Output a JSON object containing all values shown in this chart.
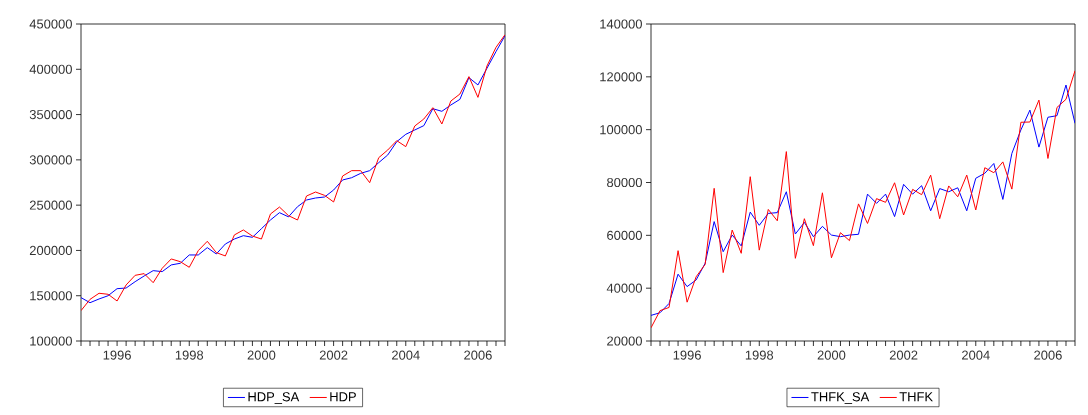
{
  "chart_data": [
    {
      "type": "line",
      "x": [
        1995,
        1995.25,
        1995.5,
        1995.75,
        1996,
        1996.25,
        1996.5,
        1996.75,
        1997,
        1997.25,
        1997.5,
        1997.75,
        1998,
        1998.25,
        1998.5,
        1998.75,
        1999,
        1999.25,
        1999.5,
        1999.75,
        2000,
        2000.25,
        2000.5,
        2000.75,
        2001,
        2001.25,
        2001.5,
        2001.75,
        2002,
        2002.25,
        2002.5,
        2002.75,
        2003,
        2003.25,
        2003.5,
        2003.75,
        2004,
        2004.25,
        2004.5,
        2004.75,
        2005,
        2005.25,
        2005.5,
        2005.75,
        2006,
        2006.25,
        2006.5,
        2006.75
      ],
      "series": [
        {
          "name": "HDP_SA",
          "color": "#0000ff",
          "values": [
            147900,
            142300,
            146400,
            150000,
            157800,
            158500,
            165500,
            171800,
            177700,
            176600,
            184000,
            185800,
            195000,
            195000,
            203100,
            196100,
            207100,
            212600,
            216300,
            214500,
            224000,
            233600,
            241700,
            237100,
            248300,
            255700,
            257900,
            259000,
            266700,
            277800,
            280300,
            285100,
            288100,
            296900,
            305400,
            320100,
            328200,
            333000,
            337800,
            356500,
            353600,
            360600,
            366800,
            390800,
            382700,
            401100,
            419500,
            437100
          ]
        },
        {
          "name": "HDP",
          "color": "#ff0000",
          "values": [
            133500,
            146000,
            152700,
            151600,
            144200,
            161900,
            172500,
            174400,
            164400,
            180300,
            190600,
            187600,
            181400,
            199800,
            210100,
            197600,
            193900,
            217100,
            222600,
            215900,
            212600,
            240200,
            247900,
            238400,
            233600,
            260100,
            264500,
            260800,
            253500,
            282200,
            288100,
            288100,
            274800,
            302400,
            310900,
            321200,
            314600,
            337400,
            345100,
            357600,
            339600,
            365000,
            372700,
            391900,
            369000,
            403600,
            424200,
            438200
          ]
        }
      ],
      "xlim": [
        1995,
        2006.75
      ],
      "xticks": [
        {
          "value": 1995,
          "label": null
        },
        {
          "value": 1995.25,
          "label": null
        },
        {
          "value": 1995.5,
          "label": null
        },
        {
          "value": 1995.75,
          "label": null
        },
        1996,
        {
          "value": 1996.25,
          "label": null
        },
        {
          "value": 1996.5,
          "label": null
        },
        {
          "value": 1996.75,
          "label": null
        },
        {
          "value": 1997,
          "label": null
        },
        {
          "value": 1997.25,
          "label": null
        },
        {
          "value": 1997.5,
          "label": null
        },
        {
          "value": 1997.75,
          "label": null
        },
        1998,
        {
          "value": 1998.25,
          "label": null
        },
        {
          "value": 1998.5,
          "label": null
        },
        {
          "value": 1998.75,
          "label": null
        },
        {
          "value": 1999,
          "label": null
        },
        {
          "value": 1999.25,
          "label": null
        },
        {
          "value": 1999.5,
          "label": null
        },
        {
          "value": 1999.75,
          "label": null
        },
        2000,
        {
          "value": 2000.25,
          "label": null
        },
        {
          "value": 2000.5,
          "label": null
        },
        {
          "value": 2000.75,
          "label": null
        },
        {
          "value": 2001,
          "label": null
        },
        {
          "value": 2001.25,
          "label": null
        },
        {
          "value": 2001.5,
          "label": null
        },
        {
          "value": 2001.75,
          "label": null
        },
        2002,
        {
          "value": 2002.25,
          "label": null
        },
        {
          "value": 2002.5,
          "label": null
        },
        {
          "value": 2002.75,
          "label": null
        },
        {
          "value": 2003,
          "label": null
        },
        {
          "value": 2003.25,
          "label": null
        },
        {
          "value": 2003.5,
          "label": null
        },
        {
          "value": 2003.75,
          "label": null
        },
        2004,
        {
          "value": 2004.25,
          "label": null
        },
        {
          "value": 2004.5,
          "label": null
        },
        {
          "value": 2004.75,
          "label": null
        },
        {
          "value": 2005,
          "label": null
        },
        {
          "value": 2005.25,
          "label": null
        },
        {
          "value": 2005.5,
          "label": null
        },
        {
          "value": 2005.75,
          "label": null
        },
        2006,
        {
          "value": 2006.25,
          "label": null
        },
        {
          "value": 2006.5,
          "label": null
        },
        {
          "value": 2006.75,
          "label": null
        }
      ],
      "ylim": [
        100000,
        450000
      ],
      "yticks": [
        100000,
        150000,
        200000,
        250000,
        300000,
        350000,
        400000,
        450000
      ],
      "legend": "bottom"
    },
    {
      "type": "line",
      "x": [
        1995,
        1995.25,
        1995.5,
        1995.75,
        1996,
        1996.25,
        1996.5,
        1996.75,
        1997,
        1997.25,
        1997.5,
        1997.75,
        1998,
        1998.25,
        1998.5,
        1998.75,
        1999,
        1999.25,
        1999.5,
        1999.75,
        2000,
        2000.25,
        2000.5,
        2000.75,
        2001,
        2001.25,
        2001.5,
        2001.75,
        2002,
        2002.25,
        2002.5,
        2002.75,
        2003,
        2003.25,
        2003.5,
        2003.75,
        2004,
        2004.25,
        2004.5,
        2004.75,
        2005,
        2005.25,
        2005.5,
        2005.75,
        2006,
        2006.25,
        2006.5,
        2006.75
      ],
      "series": [
        {
          "name": "THFK_SA",
          "color": "#0000ff",
          "values": [
            29700,
            30700,
            34200,
            45300,
            40600,
            43100,
            49400,
            65200,
            53800,
            60100,
            56000,
            68800,
            63800,
            68300,
            68600,
            76500,
            60500,
            64900,
            59500,
            63400,
            60100,
            59500,
            60100,
            60400,
            75600,
            72100,
            75600,
            67100,
            79300,
            75600,
            78800,
            69300,
            77700,
            76500,
            78000,
            69300,
            81600,
            83500,
            87200,
            73600,
            91000,
            99900,
            107400,
            93400,
            104700,
            105300,
            116900,
            102400
          ]
        },
        {
          "name": "THFK",
          "color": "#ff0000",
          "values": [
            25000,
            31500,
            32700,
            54200,
            34700,
            44300,
            49000,
            77800,
            45900,
            62000,
            53200,
            82200,
            54400,
            69800,
            65500,
            91700,
            51300,
            66300,
            56100,
            76100,
            51500,
            61000,
            58000,
            71900,
            64500,
            73900,
            72500,
            79900,
            67700,
            77400,
            75400,
            82800,
            66300,
            78700,
            74600,
            82800,
            69600,
            85600,
            83700,
            87800,
            77500,
            102800,
            102900,
            111200,
            89100,
            108400,
            111500,
            122300
          ]
        }
      ],
      "xlim": [
        1995,
        2006.75
      ],
      "xticks": [
        {
          "value": 1995,
          "label": null
        },
        {
          "value": 1995.25,
          "label": null
        },
        {
          "value": 1995.5,
          "label": null
        },
        {
          "value": 1995.75,
          "label": null
        },
        1996,
        {
          "value": 1996.25,
          "label": null
        },
        {
          "value": 1996.5,
          "label": null
        },
        {
          "value": 1996.75,
          "label": null
        },
        {
          "value": 1997,
          "label": null
        },
        {
          "value": 1997.25,
          "label": null
        },
        {
          "value": 1997.5,
          "label": null
        },
        {
          "value": 1997.75,
          "label": null
        },
        1998,
        {
          "value": 1998.25,
          "label": null
        },
        {
          "value": 1998.5,
          "label": null
        },
        {
          "value": 1998.75,
          "label": null
        },
        {
          "value": 1999,
          "label": null
        },
        {
          "value": 1999.25,
          "label": null
        },
        {
          "value": 1999.5,
          "label": null
        },
        {
          "value": 1999.75,
          "label": null
        },
        2000,
        {
          "value": 2000.25,
          "label": null
        },
        {
          "value": 2000.5,
          "label": null
        },
        {
          "value": 2000.75,
          "label": null
        },
        {
          "value": 2001,
          "label": null
        },
        {
          "value": 2001.25,
          "label": null
        },
        {
          "value": 2001.5,
          "label": null
        },
        {
          "value": 2001.75,
          "label": null
        },
        2002,
        {
          "value": 2002.25,
          "label": null
        },
        {
          "value": 2002.5,
          "label": null
        },
        {
          "value": 2002.75,
          "label": null
        },
        {
          "value": 2003,
          "label": null
        },
        {
          "value": 2003.25,
          "label": null
        },
        {
          "value": 2003.5,
          "label": null
        },
        {
          "value": 2003.75,
          "label": null
        },
        2004,
        {
          "value": 2004.25,
          "label": null
        },
        {
          "value": 2004.5,
          "label": null
        },
        {
          "value": 2004.75,
          "label": null
        },
        {
          "value": 2005,
          "label": null
        },
        {
          "value": 2005.25,
          "label": null
        },
        {
          "value": 2005.5,
          "label": null
        },
        {
          "value": 2005.75,
          "label": null
        },
        2006,
        {
          "value": 2006.25,
          "label": null
        },
        {
          "value": 2006.5,
          "label": null
        },
        {
          "value": 2006.75,
          "label": null
        }
      ],
      "ylim": [
        20000,
        140000
      ],
      "yticks": [
        20000,
        40000,
        60000,
        80000,
        100000,
        120000,
        140000
      ],
      "legend": "bottom"
    }
  ]
}
